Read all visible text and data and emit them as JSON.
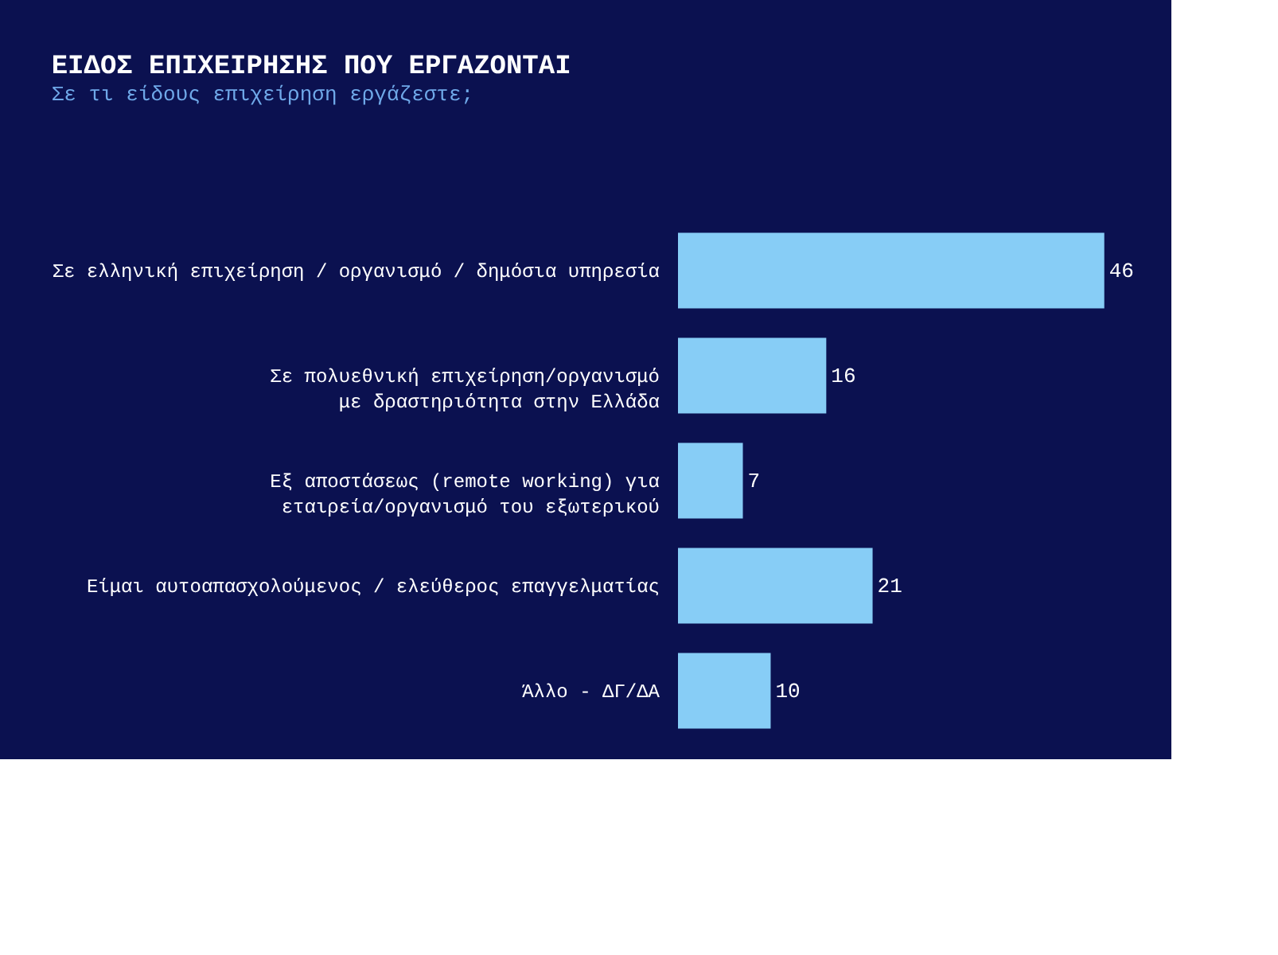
{
  "chart_data": {
    "type": "bar",
    "orientation": "horizontal",
    "title": "ΕΙΔΟΣ ΕΠΙΧΕΙΡΗΣΗΣ ΠΟΥ ΕΡΓΑΖΟΝΤΑΙ",
    "subtitle": "Σε τι είδους επιχείρηση εργάζεστε;",
    "categories": [
      "Σε ελληνική επιχείρηση / οργανισμό / δημόσια υπηρεσία",
      "Σε πολυεθνική επιχείρηση/οργανισμό με δραστηριότητα στην Ελλάδα",
      "Εξ αποστάσεως (remote working) για εταιρεία/οργανισμό του εξωτερικού",
      "Είμαι αυτοαπασχολούμενος / ελεύθερος επαγγελματίας",
      "Άλλο - ΔΓ/ΔΑ"
    ],
    "values": [
      46,
      16,
      7,
      21,
      10
    ],
    "color": "#87cdf6",
    "data_labels": true
  }
}
